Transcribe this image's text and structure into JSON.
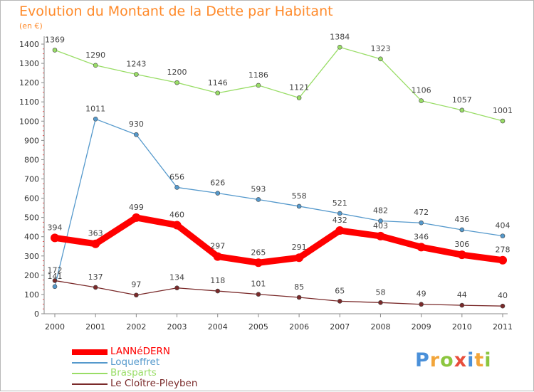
{
  "chart_data": {
    "type": "line",
    "title": "Evolution du Montant de la Dette par Habitant",
    "subtitle": "(en €)",
    "categories": [
      "2000",
      "2001",
      "2002",
      "2003",
      "2004",
      "2005",
      "2006",
      "2007",
      "2008",
      "2009",
      "2010",
      "2011"
    ],
    "y_ticks": [
      "0",
      "100",
      "200",
      "300",
      "400",
      "500",
      "600",
      "700",
      "800",
      "900",
      "1000",
      "1100",
      "1200",
      "1300",
      "1400"
    ],
    "ylim": [
      0,
      1400
    ],
    "grid": false,
    "legend_position": "bottom-left",
    "series": [
      {
        "name": "LANNéDERN",
        "color": "#ff0000",
        "values": [
          394,
          363,
          499,
          460,
          297,
          265,
          291,
          432,
          403,
          346,
          306,
          278
        ],
        "labels": [
          "394",
          "363",
          "499",
          "460",
          "297",
          "265",
          "291",
          "432",
          "403",
          "346",
          "306",
          "278"
        ]
      },
      {
        "name": "Loqueffret",
        "color": "#5599cc",
        "values": [
          141,
          1011,
          930,
          656,
          626,
          593,
          558,
          521,
          482,
          472,
          436,
          404
        ],
        "labels": [
          "141",
          "1011",
          "930",
          "656",
          "626",
          "593",
          "558",
          "521",
          "482",
          "472",
          "436",
          "404"
        ]
      },
      {
        "name": "Brasparts",
        "color": "#99dd66",
        "values": [
          1369,
          1290,
          1243,
          1200,
          1146,
          1186,
          1121,
          1384,
          1323,
          1106,
          1057,
          1001
        ],
        "labels": [
          "1369",
          "1290",
          "1243",
          "1200",
          "1146",
          "1186",
          "1121",
          "1384",
          "1323",
          "1106",
          "1057",
          "1001"
        ]
      },
      {
        "name": "Le Cloître-Pleyben",
        "color": "#7a2a2a",
        "values": [
          172,
          137,
          97,
          134,
          118,
          101,
          85,
          65,
          58,
          49,
          44,
          40
        ],
        "labels": [
          "172",
          "137",
          "97",
          "134",
          "118",
          "101",
          "85",
          "65",
          "58",
          "49",
          "44",
          "40"
        ]
      }
    ]
  },
  "brand": {
    "letters": [
      "P",
      "r",
      "o",
      "x",
      "i",
      "t",
      "i"
    ],
    "colors": [
      "#4a90d9",
      "#f2a53a",
      "#8cc63f",
      "#e84e3c",
      "#4a90d9",
      "#f2a53a",
      "#8cc63f"
    ]
  }
}
